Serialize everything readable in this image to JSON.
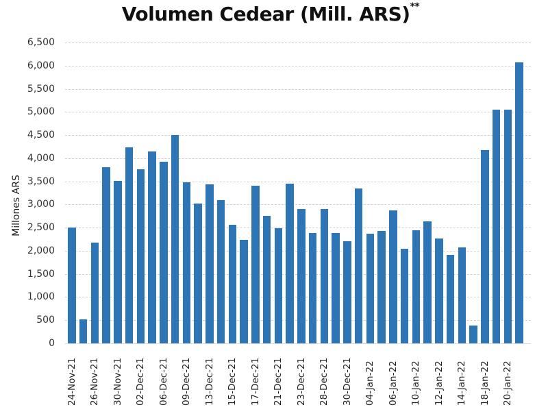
{
  "chart_data": {
    "type": "bar",
    "title": "Volumen Cedear (Mill. ARS)",
    "title_superscript": "**",
    "xlabel": "",
    "ylabel": "Millones ARS",
    "ylim": [
      0,
      6500
    ],
    "yticks": [
      "0",
      "500",
      "1,000",
      "1,500",
      "2,000",
      "2,500",
      "3,000",
      "3,500",
      "4,000",
      "4,500",
      "5,000",
      "5,500",
      "6,000",
      "6,500"
    ],
    "ytick_values": [
      0,
      500,
      1000,
      1500,
      2000,
      2500,
      3000,
      3500,
      4000,
      4500,
      5000,
      5500,
      6000,
      6500
    ],
    "grid": true,
    "legend": null,
    "bar_color": "#2e75b6",
    "xtick_labels": [
      "24-Nov-21",
      "26-Nov-21",
      "30-Nov-21",
      "02-Dec-21",
      "06-Dec-21",
      "09-Dec-21",
      "13-Dec-21",
      "15-Dec-21",
      "17-Dec-21",
      "21-Dec-21",
      "23-Dec-21",
      "28-Dec-21",
      "30-Dec-21",
      "04-Jan-22",
      "06-Jan-22",
      "10-Jan-22",
      "12-Jan-22",
      "14-Jan-22",
      "18-Jan-22",
      "20-Jan-22"
    ],
    "xtick_every": 2,
    "values": [
      2500,
      520,
      2180,
      3800,
      3510,
      4240,
      3760,
      4150,
      3920,
      4500,
      3480,
      3020,
      3430,
      3090,
      2560,
      2240,
      3400,
      2750,
      2490,
      3450,
      2900,
      2390,
      2900,
      2390,
      2200,
      3350,
      2370,
      2430,
      2870,
      2040,
      2450,
      2640,
      2270,
      1910,
      2070,
      380,
      4180,
      5050,
      5050,
      6070
    ]
  }
}
